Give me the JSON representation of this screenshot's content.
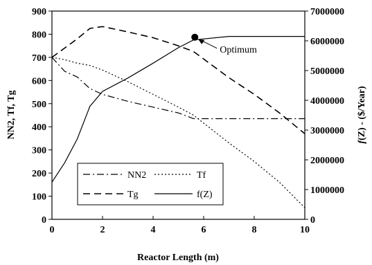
{
  "chart_data": {
    "type": "line",
    "x": [
      0,
      0.5,
      1,
      1.5,
      2,
      3,
      4,
      5,
      5.6,
      7,
      8,
      9,
      10
    ],
    "series": [
      {
        "name": "NN2",
        "style": "dashdot",
        "axis": "left",
        "values": [
          700,
          640,
          615,
          565,
          540,
          510,
          485,
          460,
          435,
          435,
          435,
          435,
          435
        ]
      },
      {
        "name": "Tf",
        "style": "dotted",
        "axis": "left",
        "values": [
          700,
          690,
          675,
          665,
          645,
          595,
          540,
          485,
          450,
          330,
          250,
          160,
          50
        ]
      },
      {
        "name": "Tg",
        "style": "dashed",
        "axis": "left",
        "values": [
          700,
          740,
          780,
          825,
          833,
          810,
          785,
          750,
          725,
          612,
          540,
          460,
          370
        ]
      },
      {
        "name": "f(Z)",
        "style": "solid",
        "axis": "right",
        "values": [
          1250000,
          1900000,
          2700000,
          3800000,
          4300000,
          4750000,
          5250000,
          5770000,
          6030000,
          6150000,
          6150000,
          6150000,
          6150000
        ]
      }
    ],
    "xlabel": "Reactor Length (m)",
    "ylabel_left": "NN2, Tf, Tg",
    "ylabel_right_italic": "f",
    "ylabel_right_rest": "(Z) - ($/Year)",
    "xlim": [
      0,
      10
    ],
    "ylim_left": [
      0,
      900
    ],
    "ylim_right": [
      0,
      7000000
    ],
    "x_ticks": [
      "0",
      "2",
      "4",
      "6",
      "8",
      "10"
    ],
    "y_ticks_left": [
      "0",
      "100",
      "200",
      "300",
      "400",
      "500",
      "600",
      "700",
      "800",
      "900"
    ],
    "y_ticks_right": [
      "0",
      "1000000",
      "2000000",
      "3000000",
      "4000000",
      "5000000",
      "6000000",
      "7000000"
    ],
    "grid": false,
    "legend_position": "lower-left",
    "legend_entries": [
      "NN2",
      "Tf",
      "Tg",
      "f(Z)"
    ],
    "annotation": {
      "text": "Optimum",
      "point_x": 5.65,
      "point_y_right": 6120000
    }
  }
}
